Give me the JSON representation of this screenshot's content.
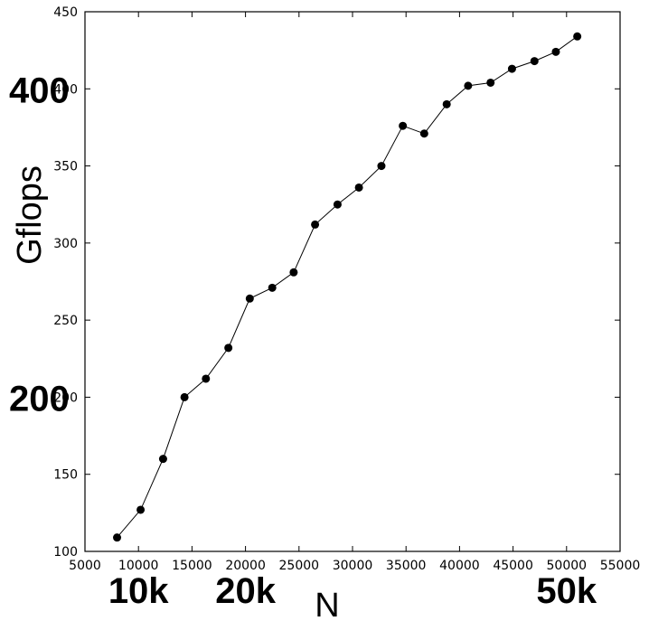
{
  "chart_data": {
    "type": "line",
    "title": "",
    "xlabel": "N",
    "ylabel": "Gflops",
    "xlim": [
      5000,
      55000
    ],
    "ylim": [
      100,
      450
    ],
    "xticks": [
      5000,
      10000,
      15000,
      20000,
      25000,
      30000,
      35000,
      40000,
      45000,
      50000,
      55000
    ],
    "yticks": [
      100,
      150,
      200,
      250,
      300,
      350,
      400,
      450
    ],
    "xtick_labels": [
      "5000",
      "10000",
      "15000",
      "20000",
      "25000",
      "30000",
      "35000",
      "40000",
      "45000",
      "50000",
      "55000"
    ],
    "ytick_labels": [
      "100",
      "150",
      "200",
      "250",
      "300",
      "350",
      "400",
      "450"
    ],
    "grid": false,
    "overlay_x_labels": [
      {
        "text": "10k",
        "x": 10000
      },
      {
        "text": "20k",
        "x": 20000
      },
      {
        "text": "50k",
        "x": 50000
      }
    ],
    "overlay_y_labels": [
      {
        "text": "400",
        "y": 400
      },
      {
        "text": "200",
        "y": 200
      }
    ],
    "series": [
      {
        "color": "#000000",
        "x": [
          8000,
          10200,
          12300,
          14300,
          16300,
          18400,
          20400,
          22500,
          24500,
          26500,
          28600,
          30600,
          32700,
          34700,
          36700,
          38800,
          40800,
          42900,
          44900,
          47000,
          49000,
          51000
        ],
        "y": [
          109,
          127,
          160,
          200,
          212,
          232,
          264,
          271,
          281,
          312,
          325,
          336,
          350,
          376,
          371,
          390,
          402,
          404,
          413,
          418,
          424,
          434
        ]
      }
    ]
  }
}
